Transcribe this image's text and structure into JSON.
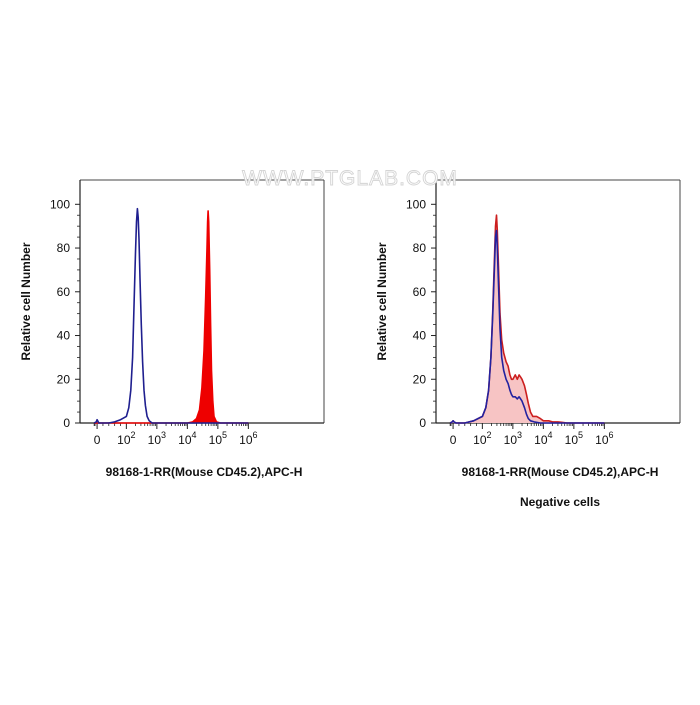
{
  "watermark": "WWW.PTGLAB.COM",
  "chart_data": [
    {
      "type": "area",
      "xscale": "biexponential",
      "xlabel": "98168-1-RR(Mouse CD45.2),APC-H",
      "ylabel": "Relative cell Number",
      "caption": "",
      "ylim": [
        0,
        100
      ],
      "y_ticks": [
        "0",
        "20",
        "40",
        "60",
        "80",
        "100"
      ],
      "x_ticks": [
        {
          "value": 0,
          "base": "0",
          "exp": ""
        },
        {
          "value": 100,
          "base": "10",
          "exp": "2"
        },
        {
          "value": 1000,
          "base": "10",
          "exp": "3"
        },
        {
          "value": 10000,
          "base": "10",
          "exp": "4"
        },
        {
          "value": 100000,
          "base": "10",
          "exp": "5"
        },
        {
          "value": 1000000,
          "base": "10",
          "exp": "6"
        }
      ],
      "series": [
        {
          "color": "#1f1f8f",
          "fill": "none",
          "points": [
            [
              -10,
              0
            ],
            [
              -3,
              0.5
            ],
            [
              0,
              1.5
            ],
            [
              2,
              1
            ],
            [
              6,
              0
            ],
            [
              15,
              0
            ],
            [
              40,
              0
            ],
            [
              60,
              0.5
            ],
            [
              80,
              1.5
            ],
            [
              100,
              3
            ],
            [
              120,
              7
            ],
            [
              140,
              15
            ],
            [
              160,
              30
            ],
            [
              180,
              55
            ],
            [
              200,
              78
            ],
            [
              215,
              92
            ],
            [
              230,
              98
            ],
            [
              245,
              94
            ],
            [
              260,
              84
            ],
            [
              280,
              66
            ],
            [
              310,
              45
            ],
            [
              340,
              28
            ],
            [
              380,
              15
            ],
            [
              420,
              8
            ],
            [
              480,
              3
            ],
            [
              560,
              1
            ],
            [
              700,
              0
            ],
            [
              1000,
              0
            ],
            [
              100000,
              0
            ],
            [
              1000000,
              0
            ]
          ]
        },
        {
          "color": "#ee0000",
          "fill": "#ee0000",
          "points": [
            [
              -10,
              0
            ],
            [
              1000,
              0
            ],
            [
              10000,
              0
            ],
            [
              15000,
              0.5
            ],
            [
              20000,
              2
            ],
            [
              25000,
              6
            ],
            [
              30000,
              16
            ],
            [
              35000,
              33
            ],
            [
              40000,
              58
            ],
            [
              44000,
              80
            ],
            [
              46000,
              92
            ],
            [
              48000,
              97
            ],
            [
              50000,
              92
            ],
            [
              54000,
              70
            ],
            [
              58000,
              45
            ],
            [
              62000,
              24
            ],
            [
              68000,
              10
            ],
            [
              75000,
              3
            ],
            [
              90000,
              0.5
            ],
            [
              120000,
              0
            ],
            [
              1000000,
              0
            ]
          ]
        }
      ]
    },
    {
      "type": "area",
      "xscale": "biexponential",
      "xlabel": "98168-1-RR(Mouse CD45.2),APC-H",
      "ylabel": "Relative cell Number",
      "caption": "Negative cells",
      "ylim": [
        0,
        100
      ],
      "y_ticks": [
        "0",
        "20",
        "40",
        "60",
        "80",
        "100"
      ],
      "x_ticks": [
        {
          "value": 0,
          "base": "0",
          "exp": ""
        },
        {
          "value": 100,
          "base": "10",
          "exp": "2"
        },
        {
          "value": 1000,
          "base": "10",
          "exp": "3"
        },
        {
          "value": 10000,
          "base": "10",
          "exp": "4"
        },
        {
          "value": 100000,
          "base": "10",
          "exp": "5"
        },
        {
          "value": 1000000,
          "base": "10",
          "exp": "6"
        }
      ],
      "series": [
        {
          "color": "#cc1f1f",
          "fill": "#f7c4c4",
          "points": [
            [
              -10,
              0
            ],
            [
              -3,
              0.5
            ],
            [
              0,
              1
            ],
            [
              3,
              0.5
            ],
            [
              10,
              0
            ],
            [
              40,
              0
            ],
            [
              70,
              1
            ],
            [
              100,
              3
            ],
            [
              130,
              7
            ],
            [
              160,
              15
            ],
            [
              190,
              30
            ],
            [
              220,
              52
            ],
            [
              250,
              76
            ],
            [
              270,
              90
            ],
            [
              290,
              95
            ],
            [
              310,
              88
            ],
            [
              340,
              70
            ],
            [
              380,
              50
            ],
            [
              430,
              38
            ],
            [
              500,
              32
            ],
            [
              600,
              28
            ],
            [
              700,
              26
            ],
            [
              800,
              22
            ],
            [
              900,
              20
            ],
            [
              1000,
              20
            ],
            [
              1200,
              22
            ],
            [
              1400,
              20
            ],
            [
              1600,
              22
            ],
            [
              1800,
              21
            ],
            [
              2000,
              20
            ],
            [
              2400,
              17
            ],
            [
              2800,
              13
            ],
            [
              3200,
              9
            ],
            [
              3800,
              5
            ],
            [
              4500,
              3
            ],
            [
              6000,
              3
            ],
            [
              8000,
              2
            ],
            [
              10000,
              1
            ],
            [
              15000,
              1
            ],
            [
              20000,
              0.5
            ],
            [
              30000,
              0.5
            ],
            [
              40000,
              0.3
            ],
            [
              60000,
              0
            ],
            [
              1000000,
              0
            ]
          ]
        },
        {
          "color": "#2222a0",
          "fill": "none",
          "points": [
            [
              -10,
              0
            ],
            [
              -3,
              0.5
            ],
            [
              0,
              1
            ],
            [
              3,
              0.5
            ],
            [
              10,
              0
            ],
            [
              40,
              0
            ],
            [
              70,
              1
            ],
            [
              100,
              3
            ],
            [
              130,
              7
            ],
            [
              160,
              15
            ],
            [
              190,
              30
            ],
            [
              220,
              50
            ],
            [
              250,
              72
            ],
            [
              270,
              85
            ],
            [
              290,
              88
            ],
            [
              310,
              80
            ],
            [
              340,
              62
            ],
            [
              380,
              43
            ],
            [
              430,
              30
            ],
            [
              500,
              24
            ],
            [
              600,
              20
            ],
            [
              700,
              18
            ],
            [
              800,
              15
            ],
            [
              900,
              13
            ],
            [
              1000,
              12
            ],
            [
              1200,
              12
            ],
            [
              1400,
              11
            ],
            [
              1600,
              12
            ],
            [
              1800,
              11
            ],
            [
              2000,
              10
            ],
            [
              2400,
              7
            ],
            [
              2800,
              4
            ],
            [
              3200,
              2
            ],
            [
              3800,
              1
            ],
            [
              5000,
              0.5
            ],
            [
              8000,
              0
            ],
            [
              1000000,
              0
            ]
          ]
        }
      ]
    }
  ]
}
